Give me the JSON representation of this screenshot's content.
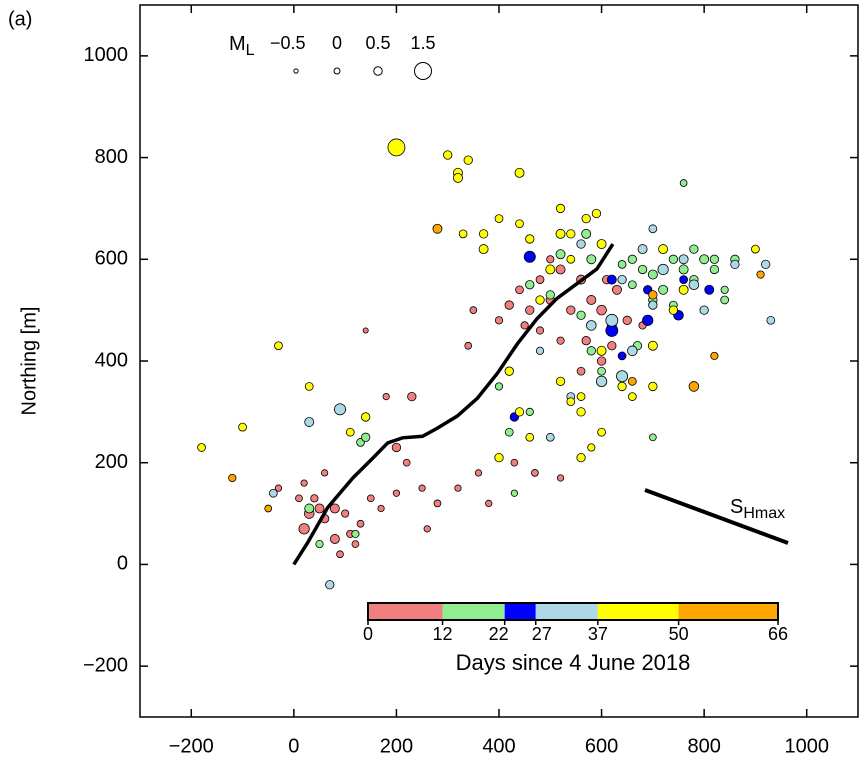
{
  "chart_data": {
    "type": "scatter",
    "title": "(a)",
    "ylabel": "Northing [m]",
    "xlim": [
      -300,
      1100
    ],
    "ylim": [
      -300,
      1100
    ],
    "xticks": [
      {
        "value": -200,
        "label": "−200"
      },
      0,
      200,
      400,
      600,
      800,
      1000
    ],
    "yticks": [
      {
        "value": -200,
        "label": "−200"
      },
      0,
      200,
      400,
      600,
      800,
      1000
    ],
    "magnitude_legend": {
      "symbol": "M",
      "subscript": "L",
      "values": [
        {
          "value": -0.5,
          "label": "−0.5"
        },
        0,
        0.5,
        1.5
      ]
    },
    "annotation": {
      "symbol": "S",
      "subscript": "Hmax"
    },
    "colorbar": {
      "label": "Days since 4 June 2018",
      "ticks": [
        0,
        12,
        22,
        27,
        37,
        50,
        66
      ],
      "colors": [
        "#f08080",
        "#90ee90",
        "#0000ff",
        "#add8e6",
        "#ffff00",
        "#ffa500"
      ]
    },
    "fault": {
      "x": [
        0,
        27,
        66,
        115,
        154,
        183,
        212,
        251,
        280,
        319,
        358,
        397,
        436,
        474,
        513,
        552,
        591,
        622
      ],
      "y": [
        0,
        43,
        112,
        170,
        209,
        239,
        249,
        252,
        268,
        292,
        327,
        376,
        434,
        483,
        523,
        552,
        581,
        630
      ]
    },
    "series": [
      {
        "color": "#f08080",
        "x": [
          20,
          30,
          50,
          60,
          80,
          40,
          10,
          100,
          110,
          130,
          20,
          -30,
          60,
          120,
          80,
          90,
          150,
          170,
          200,
          200,
          180,
          230,
          220,
          250,
          280,
          320,
          360,
          380,
          260,
          140,
          420,
          440,
          460,
          480,
          500,
          520,
          540,
          560,
          570,
          580,
          600,
          610,
          620,
          630,
          650,
          600,
          560,
          520,
          400,
          340,
          450,
          480,
          930,
          500,
          680,
          430,
          470,
          520,
          350
        ],
        "y": [
          70,
          100,
          110,
          90,
          110,
          130,
          130,
          100,
          60,
          80,
          160,
          150,
          180,
          40,
          50,
          20,
          130,
          110,
          140,
          230,
          330,
          330,
          200,
          150,
          120,
          150,
          180,
          120,
          70,
          460,
          510,
          540,
          500,
          560,
          520,
          580,
          500,
          560,
          440,
          520,
          500,
          560,
          430,
          540,
          480,
          400,
          380,
          440,
          480,
          430,
          470,
          460,
          480,
          600,
          470,
          200,
          180,
          170,
          500
        ],
        "sizes": [
          0.8,
          0.7,
          0.6,
          0.5,
          0.6,
          0.3,
          0.2,
          0.3,
          0.3,
          0.2,
          0.1,
          0.1,
          0.1,
          0.2,
          0.6,
          0.2,
          0.2,
          0.1,
          0.1,
          0.5,
          0.1,
          0.5,
          0.2,
          0.1,
          0.2,
          0.1,
          0.1,
          0.1,
          0.1,
          -0.2,
          0.5,
          0.4,
          0.5,
          0.4,
          0.5,
          0.6,
          0.5,
          0.6,
          0.5,
          0.6,
          0.7,
          0.5,
          0.5,
          0.6,
          0.5,
          0.5,
          0.4,
          0.3,
          0.3,
          0.2,
          0.3,
          0.3,
          0.2,
          0.3,
          0.3,
          0.2,
          0.2,
          0.1,
          0.2
        ]
      },
      {
        "color": "#90ee90",
        "x": [
          30,
          50,
          120,
          130,
          140,
          400,
          420,
          460,
          460,
          500,
          520,
          570,
          560,
          580,
          600,
          640,
          660,
          680,
          700,
          720,
          740,
          760,
          780,
          800,
          820,
          840,
          760,
          700,
          740,
          780,
          820,
          720,
          670,
          620,
          700,
          580,
          840,
          430,
          660,
          860
        ],
        "y": [
          110,
          40,
          60,
          240,
          250,
          350,
          260,
          300,
          550,
          530,
          610,
          650,
          490,
          420,
          380,
          590,
          600,
          580,
          570,
          540,
          600,
          580,
          560,
          600,
          580,
          540,
          750,
          520,
          510,
          620,
          600,
          620,
          430,
          470,
          250,
          600,
          520,
          140,
          550,
          600
        ],
        "sizes": [
          0.6,
          0.3,
          0.3,
          0.4,
          0.5,
          0.3,
          0.4,
          0.3,
          0.5,
          0.5,
          0.6,
          0.6,
          0.5,
          0.5,
          0.4,
          0.4,
          0.5,
          0.5,
          0.6,
          0.6,
          0.5,
          0.6,
          0.5,
          0.6,
          0.5,
          0.3,
          0.2,
          0.5,
          0.4,
          0.5,
          0.5,
          0.4,
          0.5,
          0.6,
          0.2,
          0.6,
          0.4,
          0.1,
          0.4,
          0.5
        ]
      },
      {
        "color": "#0000ff",
        "x": [
          460,
          620,
          620,
          690,
          750,
          810,
          690,
          430,
          640,
          760
        ],
        "y": [
          605,
          460,
          560,
          480,
          490,
          540,
          540,
          290,
          410,
          560
        ],
        "sizes": [
          0.9,
          1.0,
          0.6,
          0.8,
          0.7,
          0.6,
          0.5,
          0.5,
          0.4,
          0.4
        ]
      },
      {
        "color": "#add8e6",
        "x": [
          90,
          30,
          -40,
          70,
          500,
          620,
          600,
          640,
          660,
          680,
          700,
          720,
          760,
          780,
          800,
          860,
          920,
          930,
          580,
          560,
          700,
          540,
          640,
          480
        ],
        "y": [
          305,
          280,
          140,
          -40,
          250,
          480,
          360,
          370,
          420,
          620,
          510,
          580,
          600,
          550,
          500,
          590,
          590,
          480,
          470,
          630,
          660,
          330,
          560,
          420
        ],
        "sizes": [
          0.9,
          0.6,
          0.4,
          0.5,
          0.4,
          1.0,
          0.8,
          0.9,
          0.7,
          0.6,
          0.5,
          0.8,
          0.6,
          0.7,
          0.5,
          0.5,
          0.5,
          0.4,
          0.7,
          0.5,
          0.4,
          0.4,
          0.5,
          0.3
        ]
      },
      {
        "color": "#ffff00",
        "x": [
          200,
          300,
          320,
          320,
          340,
          440,
          370,
          330,
          370,
          400,
          440,
          460,
          500,
          520,
          520,
          540,
          540,
          590,
          570,
          600,
          -180,
          -30,
          -100,
          30,
          140,
          110,
          420,
          440,
          400,
          460,
          520,
          540,
          560,
          560,
          580,
          600,
          560,
          640,
          660,
          700,
          720,
          700,
          740,
          760,
          900,
          480,
          600
        ],
        "y": [
          820,
          805,
          770,
          760,
          795,
          770,
          650,
          650,
          620,
          680,
          670,
          640,
          580,
          650,
          700,
          600,
          650,
          690,
          680,
          630,
          230,
          430,
          270,
          350,
          290,
          260,
          380,
          300,
          210,
          250,
          360,
          320,
          330,
          300,
          230,
          260,
          210,
          350,
          330,
          430,
          620,
          350,
          500,
          540,
          620,
          520,
          420
        ],
        "sizes": [
          1.5,
          0.5,
          0.6,
          0.6,
          0.5,
          0.6,
          0.5,
          0.4,
          0.6,
          0.4,
          0.4,
          0.5,
          0.6,
          0.6,
          0.5,
          0.4,
          0.5,
          0.5,
          0.5,
          0.6,
          0.4,
          0.4,
          0.4,
          0.4,
          0.5,
          0.4,
          0.5,
          0.5,
          0.5,
          0.4,
          0.5,
          0.4,
          0.4,
          0.5,
          0.3,
          0.4,
          0.5,
          0.5,
          0.4,
          0.6,
          0.6,
          0.5,
          0.5,
          0.6,
          0.4,
          0.5,
          0.6
        ]
      },
      {
        "color": "#ffa500",
        "x": [
          280,
          -120,
          -50,
          780,
          820,
          910,
          700,
          660
        ],
        "y": [
          660,
          170,
          110,
          350,
          410,
          570,
          530,
          360
        ],
        "sizes": [
          0.6,
          0.3,
          0.2,
          0.7,
          0.3,
          0.3,
          0.5,
          0.4
        ]
      }
    ]
  }
}
